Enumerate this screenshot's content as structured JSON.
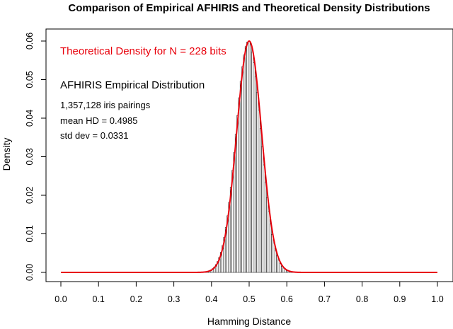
{
  "chart_data": {
    "type": "bar",
    "title": "Comparison of Empirical AFHIRIS and Theoretical Density Distributions",
    "xlabel": "Hamming Distance",
    "ylabel": "Density",
    "xlim": [
      0.0,
      1.0
    ],
    "ylim": [
      0.0,
      0.06
    ],
    "xticks": [
      "0.0",
      "0.1",
      "0.2",
      "0.3",
      "0.4",
      "0.5",
      "0.6",
      "0.7",
      "0.8",
      "0.9",
      "1.0"
    ],
    "yticks": [
      "0.00",
      "0.01",
      "0.02",
      "0.03",
      "0.04",
      "0.05",
      "0.06"
    ],
    "grid": false,
    "annotations": {
      "theoretical": "Theoretical Density for N = 228 bits",
      "empirical": "AFHIRIS Empirical Distribution",
      "pairings": "1,357,128 iris pairings",
      "mean": "mean HD =  0.4985",
      "std": "std dev =  0.0331"
    },
    "series": [
      {
        "type": "histogram",
        "color": "#000000",
        "mean": 0.4985,
        "std": 0.0331,
        "peak": 0.06
      },
      {
        "type": "line",
        "color": "#e8000b",
        "N": 228,
        "peak": 0.06
      }
    ]
  }
}
